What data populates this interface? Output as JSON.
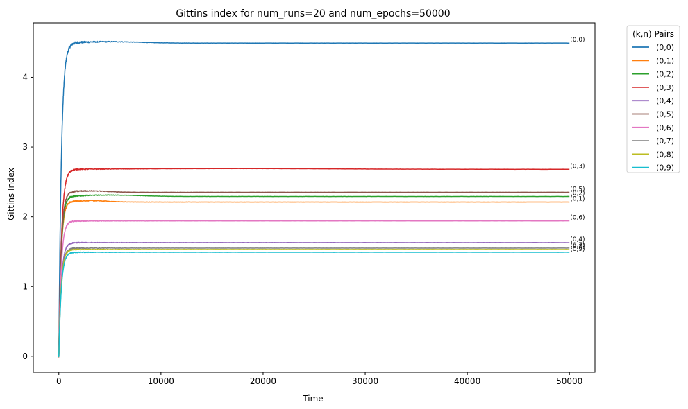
{
  "chart_data": {
    "type": "line",
    "title": "Gittins index for num_runs=20 and num_epochs=50000",
    "xlabel": "Time",
    "ylabel": "Gittins Index",
    "xlim": [
      -2500,
      52500
    ],
    "ylim": [
      -0.23,
      4.78
    ],
    "xticks": [
      0,
      10000,
      20000,
      30000,
      40000,
      50000
    ],
    "yticks": [
      0,
      1,
      2,
      3,
      4
    ],
    "grid": false,
    "legend": {
      "title": "(k,n) Pairs",
      "placement": "outside-top-right"
    },
    "series": [
      {
        "name": "(0,0)",
        "color": "#1f77b4",
        "final": 4.49,
        "peak": 4.51,
        "peak_x": 5000,
        "tau": 250
      },
      {
        "name": "(0,1)",
        "color": "#ff7f0e",
        "final": 2.21,
        "peak": 2.23,
        "peak_x": 3000,
        "tau": 220
      },
      {
        "name": "(0,2)",
        "color": "#2ca02c",
        "final": 2.29,
        "peak": 2.31,
        "peak_x": 5000,
        "tau": 230
      },
      {
        "name": "(0,3)",
        "color": "#d62728",
        "final": 2.68,
        "peak": 2.69,
        "peak_x": 17000,
        "tau": 260
      },
      {
        "name": "(0,4)",
        "color": "#9467bd",
        "final": 1.63,
        "peak": 1.63,
        "peak_x": 5000,
        "tau": 240
      },
      {
        "name": "(0,5)",
        "color": "#8c564b",
        "final": 2.35,
        "peak": 2.37,
        "peak_x": 3000,
        "tau": 230
      },
      {
        "name": "(0,6)",
        "color": "#e377c2",
        "final": 1.94,
        "peak": 1.94,
        "peak_x": 4000,
        "tau": 230
      },
      {
        "name": "(0,7)",
        "color": "#7f7f7f",
        "final": 1.55,
        "peak": 1.55,
        "peak_x": 4000,
        "tau": 230
      },
      {
        "name": "(0,8)",
        "color": "#bcbd22",
        "final": 1.53,
        "peak": 1.53,
        "peak_x": 4000,
        "tau": 230
      },
      {
        "name": "(0,9)",
        "color": "#17becf",
        "final": 1.49,
        "peak": 1.49,
        "peak_x": 4000,
        "tau": 240
      }
    ],
    "start_value": 0,
    "end_x": 50000
  }
}
